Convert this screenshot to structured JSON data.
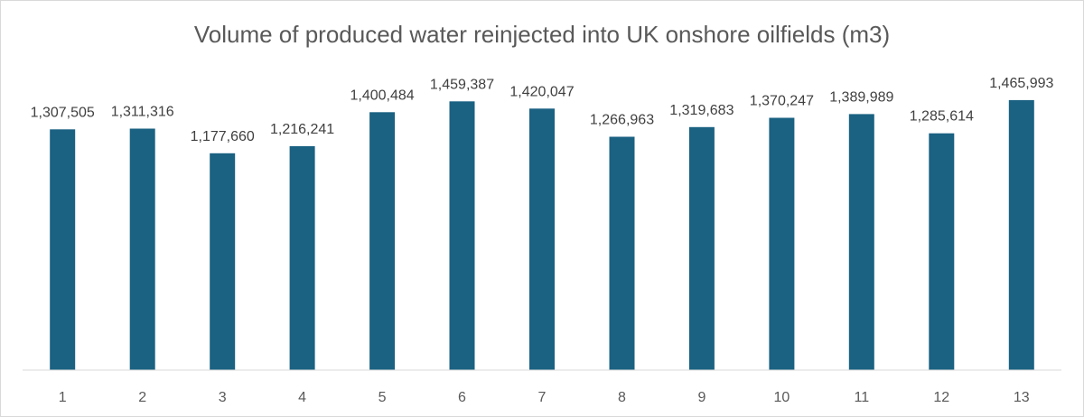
{
  "chart_data": {
    "type": "bar",
    "title": "Volume of produced water reinjected into UK onshore oilfields (m3)",
    "xlabel": "",
    "ylabel": "",
    "categories": [
      "1",
      "2",
      "3",
      "4",
      "5",
      "6",
      "7",
      "8",
      "9",
      "10",
      "11",
      "12",
      "13"
    ],
    "values": [
      1307505,
      1311316,
      1177660,
      1216241,
      1400484,
      1459387,
      1420047,
      1266963,
      1319683,
      1370247,
      1389989,
      1285614,
      1465993
    ],
    "data_labels": [
      "1,307,505",
      "1,311,316",
      "1,177,660",
      "1,216,241",
      "1,400,484",
      "1,459,387",
      "1,420,047",
      "1,266,963",
      "1,319,683",
      "1,370,247",
      "1,389,989",
      "1,285,614",
      "1,465,993"
    ],
    "ylim": [
      0,
      1500000
    ],
    "grid": false,
    "legend": "none",
    "bar_color": "#1a6182",
    "axis_color": "#d9d9d9"
  }
}
